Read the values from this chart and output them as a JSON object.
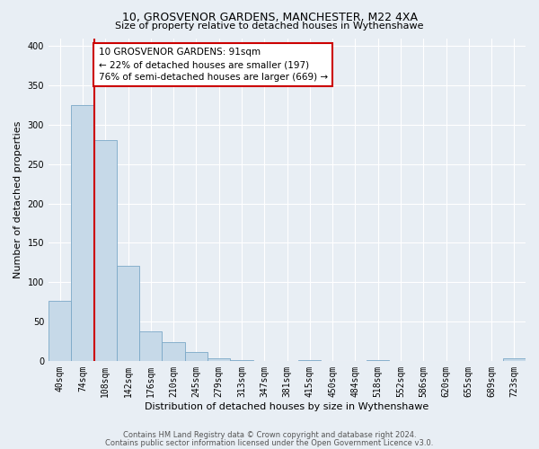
{
  "title": "10, GROSVENOR GARDENS, MANCHESTER, M22 4XA",
  "subtitle": "Size of property relative to detached houses in Wythenshawe",
  "xlabel": "Distribution of detached houses by size in Wythenshawe",
  "ylabel": "Number of detached properties",
  "footnote1": "Contains HM Land Registry data © Crown copyright and database right 2024.",
  "footnote2": "Contains public sector information licensed under the Open Government Licence v3.0.",
  "bar_labels": [
    "40sqm",
    "74sqm",
    "108sqm",
    "142sqm",
    "176sqm",
    "210sqm",
    "245sqm",
    "279sqm",
    "313sqm",
    "347sqm",
    "381sqm",
    "415sqm",
    "450sqm",
    "484sqm",
    "518sqm",
    "552sqm",
    "586sqm",
    "620sqm",
    "655sqm",
    "689sqm",
    "723sqm"
  ],
  "bar_values": [
    76,
    325,
    280,
    121,
    37,
    24,
    11,
    3,
    1,
    0,
    0,
    1,
    0,
    0,
    1,
    0,
    0,
    0,
    0,
    0,
    3
  ],
  "bar_color": "#c6d9e8",
  "bar_edgecolor": "#7aa8c7",
  "ylim": [
    0,
    410
  ],
  "yticks": [
    0,
    50,
    100,
    150,
    200,
    250,
    300,
    350,
    400
  ],
  "vline_color": "#cc0000",
  "vline_x": 1.5,
  "annotation_text": "10 GROSVENOR GARDENS: 91sqm\n← 22% of detached houses are smaller (197)\n76% of semi-detached houses are larger (669) →",
  "annotation_box_edgecolor": "#cc0000",
  "bg_color": "#e8eef4",
  "grid_color": "#ffffff",
  "title_fontsize": 9,
  "subtitle_fontsize": 8,
  "xlabel_fontsize": 8,
  "ylabel_fontsize": 8,
  "tick_fontsize": 7,
  "annot_fontsize": 7.5,
  "footnote_fontsize": 6
}
